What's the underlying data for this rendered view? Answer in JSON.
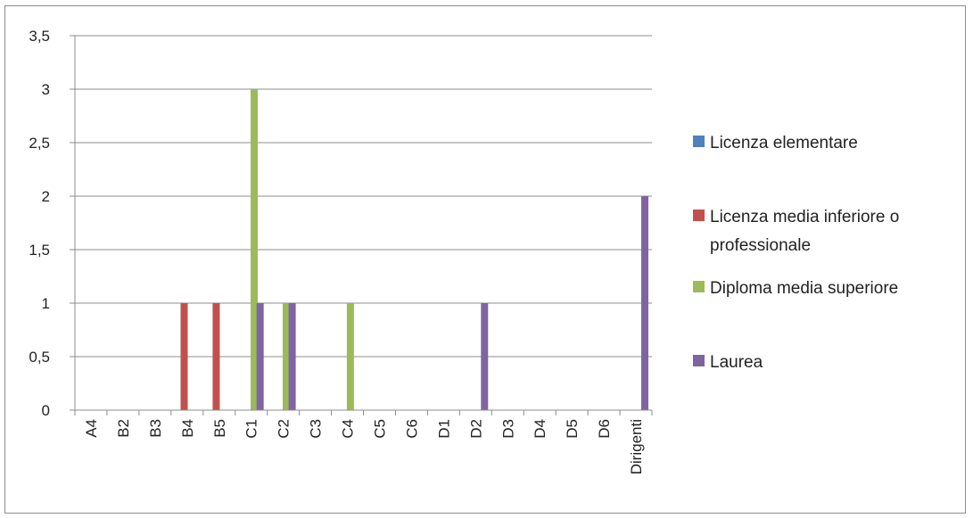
{
  "chart_data": {
    "type": "bar",
    "categories": [
      "A4",
      "B2",
      "B3",
      "B4",
      "B5",
      "C1",
      "C2",
      "C3",
      "C4",
      "C5",
      "C6",
      "D1",
      "D2",
      "D3",
      "D4",
      "D5",
      "D6",
      "Dirigenti"
    ],
    "series": [
      {
        "name": "Licenza elementare",
        "color": "#4f81bd",
        "values": [
          0,
          0,
          0,
          0,
          0,
          0,
          0,
          0,
          0,
          0,
          0,
          0,
          0,
          0,
          0,
          0,
          0,
          0
        ]
      },
      {
        "name": "Licenza media inferiore o professionale",
        "color": "#c0504d",
        "values": [
          0,
          0,
          0,
          1,
          1,
          0,
          0,
          0,
          0,
          0,
          0,
          0,
          0,
          0,
          0,
          0,
          0,
          0
        ]
      },
      {
        "name": "Diploma media superiore",
        "color": "#9bbb59",
        "values": [
          0,
          0,
          0,
          0,
          0,
          3,
          1,
          0,
          1,
          0,
          0,
          0,
          0,
          0,
          0,
          0,
          0,
          0
        ]
      },
      {
        "name": "Laurea",
        "color": "#8064a2",
        "values": [
          0,
          0,
          0,
          0,
          0,
          1,
          1,
          0,
          0,
          0,
          0,
          0,
          1,
          0,
          0,
          0,
          0,
          2
        ]
      }
    ],
    "ylim": [
      0,
      3.5
    ],
    "yticks": [
      "0",
      "0,5",
      "1",
      "1,5",
      "2",
      "2,5",
      "3",
      "3,5"
    ],
    "grid": true,
    "legend_position": "right"
  }
}
